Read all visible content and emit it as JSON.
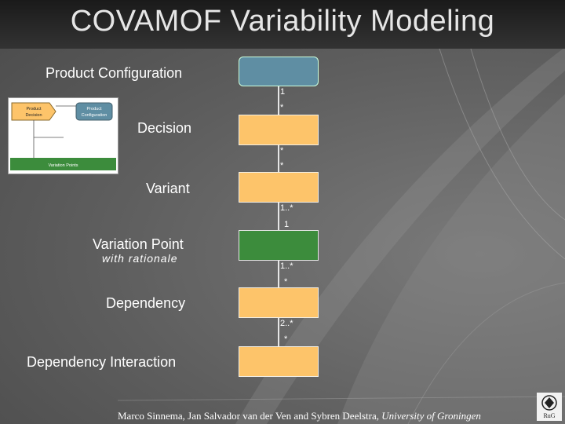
{
  "slide": {
    "title": "COVAMOF Variability Modeling",
    "footer_authors": "Marco Sinnema, Jan Salvador van der Ven and Sybren Deelstra,",
    "footer_institution": "University of Groningen",
    "logo_text": "RuG"
  },
  "diagram": {
    "labels": {
      "product_configuration": "Product Configuration",
      "decision": "Decision",
      "variant": "Variant",
      "variation_point": "Variation Point",
      "variation_point_sub": "with rationale",
      "dependency": "Dependency",
      "dependency_interaction": "Dependency Interaction"
    },
    "multiplicities": {
      "config_top": "1",
      "config_bottom": "*",
      "decision_bottom": "*",
      "variant_top": "*",
      "variant_bottom": "1..*",
      "vp_top": "1",
      "vp_bottom": "1..*",
      "dependency_top": "*",
      "dependency_bottom": "2..*",
      "interaction_top": "*"
    },
    "inset": {
      "product_decision": "Product Decision",
      "product_configuration": "Product Configuration",
      "variation_points": "Variation Points"
    },
    "colors": {
      "config_box": "#5f8ea3",
      "orange_box": "#fdc46a",
      "green_box": "#3c8c3c"
    }
  }
}
